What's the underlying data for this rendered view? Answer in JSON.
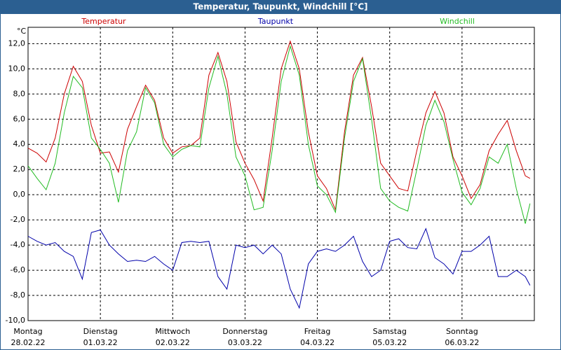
{
  "chart_data": {
    "type": "line",
    "title": "Temperatur, Taupunkt, Windchill [°C]",
    "y_unit": "°C",
    "x": [
      0,
      0.125,
      0.25,
      0.375,
      0.5,
      0.625,
      0.75,
      0.875,
      1,
      1.125,
      1.25,
      1.375,
      1.5,
      1.625,
      1.75,
      1.875,
      2,
      2.125,
      2.25,
      2.375,
      2.5,
      2.625,
      2.75,
      2.875,
      3,
      3.125,
      3.25,
      3.375,
      3.5,
      3.625,
      3.75,
      3.875,
      4,
      4.125,
      4.25,
      4.375,
      4.5,
      4.625,
      4.75,
      4.875,
      5,
      5.125,
      5.25,
      5.375,
      5.5,
      5.625,
      5.75,
      5.875,
      6,
      6.125,
      6.25,
      6.375,
      6.5,
      6.625,
      6.75,
      6.875,
      6.94
    ],
    "series": [
      {
        "name": "Temperatur",
        "color": "#cc0000",
        "values": [
          3.7,
          3.3,
          2.6,
          4.5,
          8.0,
          10.2,
          9.0,
          5.5,
          3.3,
          3.4,
          1.8,
          5.2,
          7.0,
          8.7,
          7.5,
          4.5,
          3.3,
          3.8,
          3.9,
          4.5,
          9.5,
          11.3,
          9.0,
          4.2,
          2.5,
          1.2,
          -0.5,
          4.5,
          10.0,
          12.2,
          10.0,
          5.0,
          1.5,
          0.5,
          -1.2,
          5.0,
          9.5,
          10.9,
          7.0,
          2.5,
          1.5,
          0.5,
          0.3,
          3.5,
          6.5,
          8.2,
          6.5,
          3.0,
          1.5,
          -0.3,
          0.8,
          3.5,
          4.8,
          5.9,
          3.5,
          1.5,
          1.3
        ]
      },
      {
        "name": "Taupunkt",
        "color": "#0000aa",
        "values": [
          -3.3,
          -3.7,
          -4.0,
          -3.8,
          -4.5,
          -4.9,
          -6.7,
          -3.0,
          -2.8,
          -4.0,
          -4.7,
          -5.3,
          -5.2,
          -5.3,
          -4.9,
          -5.5,
          -6.0,
          -3.8,
          -3.7,
          -3.8,
          -3.7,
          -6.5,
          -7.5,
          -4.0,
          -4.2,
          -4.0,
          -4.7,
          -4.0,
          -4.7,
          -7.5,
          -9.0,
          -5.5,
          -4.5,
          -4.3,
          -4.5,
          -4.0,
          -3.3,
          -5.3,
          -6.5,
          -6.0,
          -3.7,
          -3.5,
          -4.2,
          -4.3,
          -2.7,
          -5.0,
          -5.5,
          -6.3,
          -4.5,
          -4.5,
          -4.0,
          -3.3,
          -6.5,
          -6.5,
          -6.0,
          -6.5,
          -7.2
        ]
      },
      {
        "name": "Windchill",
        "color": "#22bb22",
        "values": [
          2.3,
          1.3,
          0.4,
          2.5,
          6.5,
          9.4,
          8.5,
          4.5,
          3.6,
          2.5,
          -0.6,
          3.5,
          5.0,
          8.5,
          7.3,
          4.0,
          3.0,
          3.6,
          3.9,
          3.8,
          8.5,
          11.0,
          8.0,
          3.0,
          1.5,
          -1.2,
          -1.0,
          3.5,
          9.0,
          11.8,
          9.5,
          4.0,
          0.7,
          0.0,
          -1.4,
          4.5,
          9.0,
          10.8,
          6.0,
          0.5,
          -0.5,
          -1.0,
          -1.3,
          2.0,
          5.5,
          7.5,
          5.8,
          2.8,
          0.2,
          -0.8,
          0.5,
          3.0,
          2.5,
          4.0,
          0.5,
          -2.3,
          -0.7
        ]
      }
    ],
    "xlim": [
      0,
      7
    ],
    "xticks": [
      {
        "value": 0,
        "label": "Montag",
        "date": "28.02.22"
      },
      {
        "value": 1,
        "label": "Dienstag",
        "date": "01.03.22"
      },
      {
        "value": 2,
        "label": "Mittwoch",
        "date": "02.03.22"
      },
      {
        "value": 3,
        "label": "Donnerstag",
        "date": "03.03.22"
      },
      {
        "value": 4,
        "label": "Freitag",
        "date": "04.03.22"
      },
      {
        "value": 5,
        "label": "Samstag",
        "date": "05.03.22"
      },
      {
        "value": 6,
        "label": "Sonntag",
        "date": "06.03.22"
      }
    ],
    "ylim": [
      -10,
      13.3
    ],
    "yticks": [
      {
        "value": 12,
        "label": "12,0"
      },
      {
        "value": 10,
        "label": "10,0"
      },
      {
        "value": 8,
        "label": "8,0"
      },
      {
        "value": 6,
        "label": "6,0"
      },
      {
        "value": 4,
        "label": "4,0"
      },
      {
        "value": 2,
        "label": "2,0"
      },
      {
        "value": 0,
        "label": "0,0"
      },
      {
        "value": -2,
        "label": "-2,0"
      },
      {
        "value": -4,
        "label": "-4,0"
      },
      {
        "value": -6,
        "label": "-6,0"
      },
      {
        "value": -8,
        "label": "-8,0"
      },
      {
        "value": -10,
        "label": "-10,0"
      }
    ],
    "grid": true
  }
}
